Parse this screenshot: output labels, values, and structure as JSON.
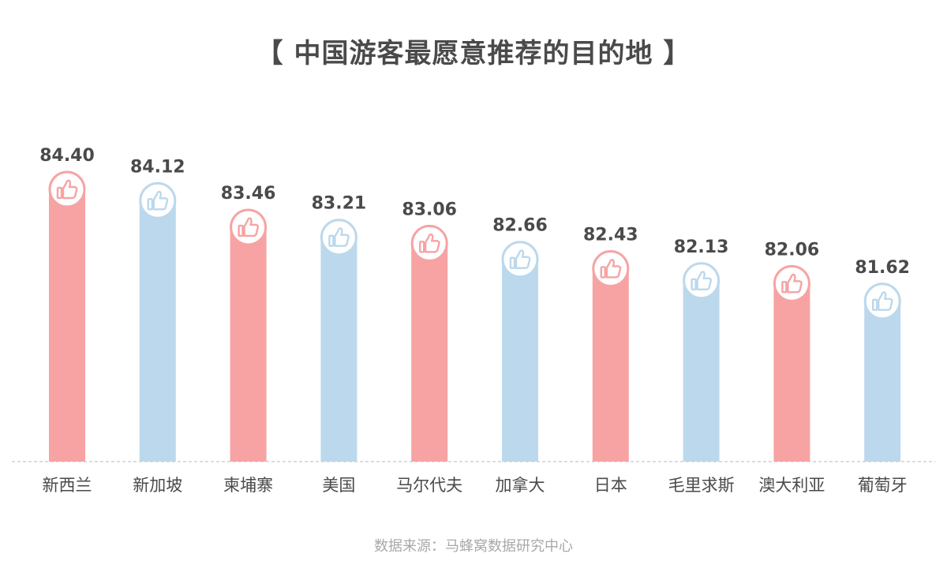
{
  "chart_data": {
    "type": "bar",
    "title": "【 中国游客最愿意推荐的目的地 】",
    "categories": [
      "新西兰",
      "新加坡",
      "柬埔寨",
      "美国",
      "马尔代夫",
      "加拿大",
      "日本",
      "毛里求斯",
      "澳大利亚",
      "葡萄牙"
    ],
    "values": [
      84.4,
      84.12,
      83.46,
      83.21,
      83.06,
      82.66,
      82.43,
      82.13,
      82.06,
      81.62
    ],
    "value_labels": [
      "84.40",
      "84.12",
      "83.46",
      "83.21",
      "83.06",
      "82.66",
      "82.43",
      "82.13",
      "82.06",
      "81.62"
    ],
    "bar_colors": [
      "#f7a3a3",
      "#bcd8ec",
      "#f7a3a3",
      "#bcd8ec",
      "#f7a3a3",
      "#bcd8ec",
      "#f7a3a3",
      "#bcd8ec",
      "#f7a3a3",
      "#bcd8ec"
    ],
    "icon": "thumbs-up-icon",
    "xlabel": "",
    "ylabel": "",
    "grid": false,
    "baseline_style": "dashed"
  },
  "source": "数据来源：马蜂窝数据研究中心"
}
